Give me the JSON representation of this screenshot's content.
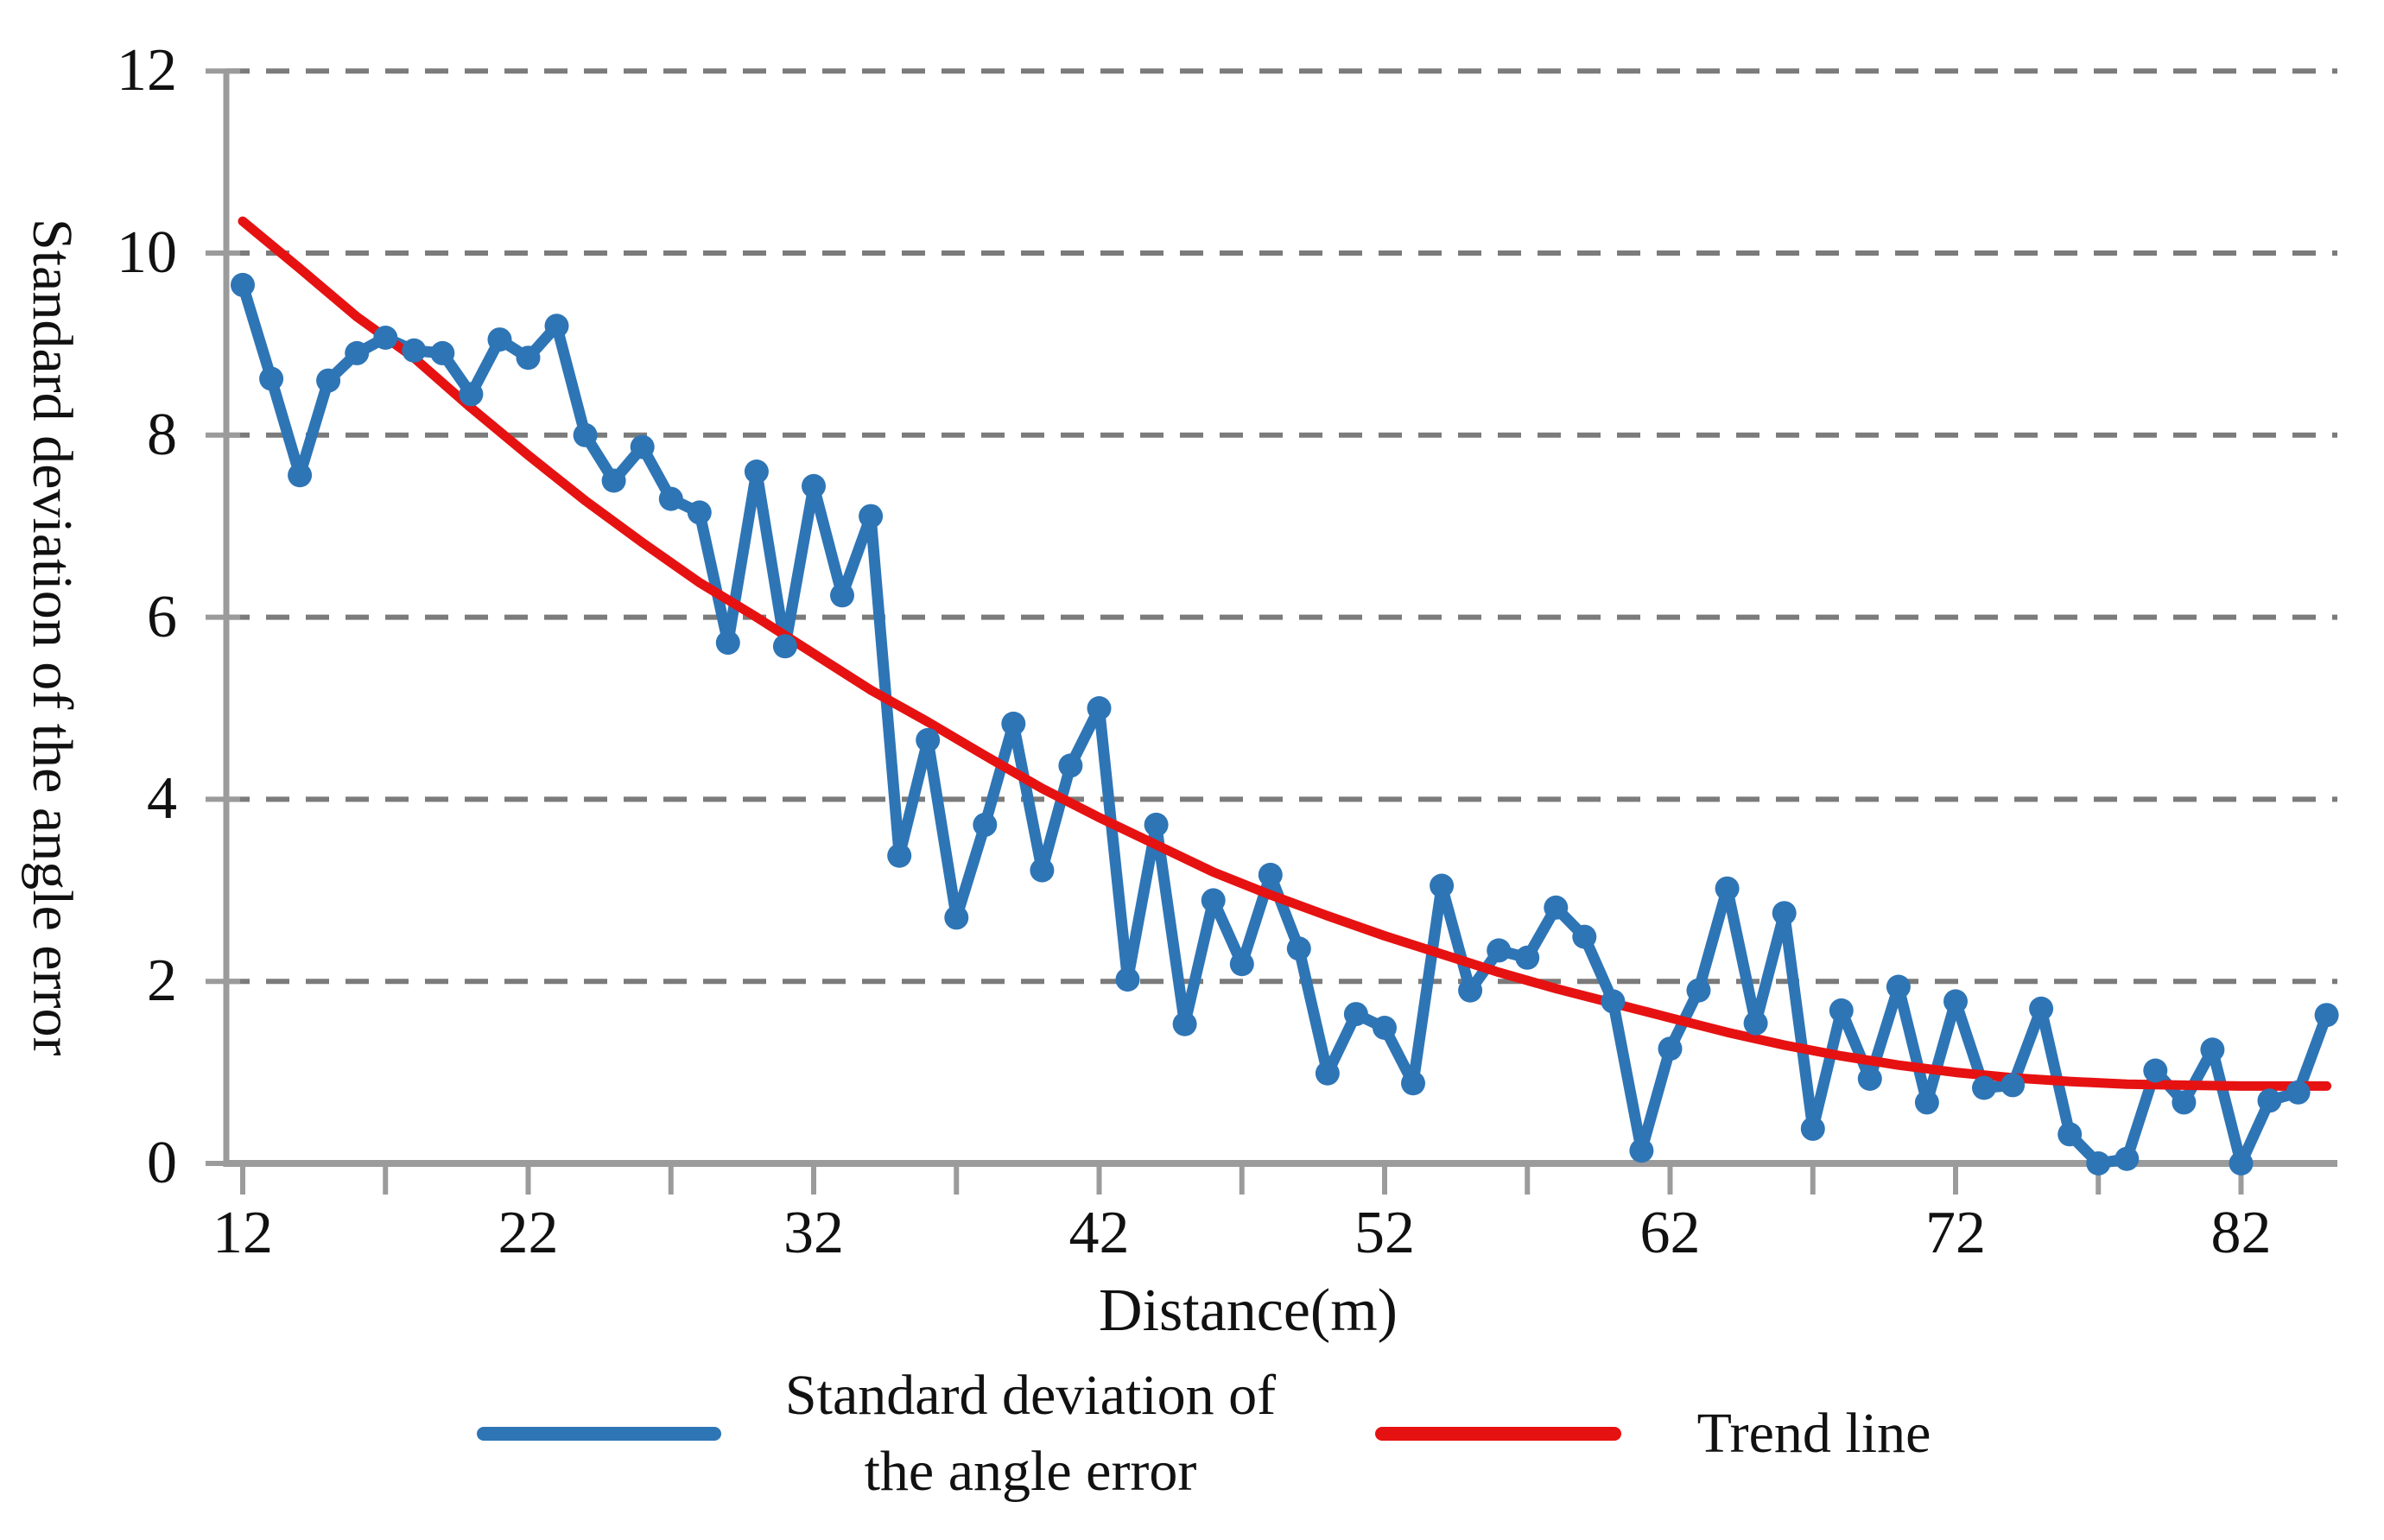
{
  "colors": {
    "series_blue": "#2E75B6",
    "trend_red": "#E61212",
    "axis_gray": "#9B9B9B",
    "grid_gray": "#7B7B7B",
    "text": "#111111",
    "background": "#FFFFFF"
  },
  "legend": {
    "series1_label_line1": "Standard deviation of",
    "series1_label_line2": "the angle error",
    "series2_label": "Trend line"
  },
  "chart_data": {
    "type": "line",
    "title": "",
    "xlabel": "Distance(m)",
    "ylabel": "Standard deviation of the angle error",
    "xlim": [
      12,
      85.3
    ],
    "ylim": [
      0,
      12
    ],
    "x_tick_labels": [
      12,
      22,
      32,
      42,
      52,
      62,
      72,
      82
    ],
    "x_minor_tick_step": 5,
    "y_tick_labels": [
      0,
      2,
      4,
      6,
      8,
      10,
      12
    ],
    "grid": "horizontal dashed gridlines every 2 units",
    "legend_position": "bottom-center",
    "series": [
      {
        "name": "Standard deviation of the angle error",
        "style": "line+markers",
        "color": "#2E75B6",
        "x": [
          12,
          13,
          14,
          15,
          16,
          17,
          18,
          19,
          20,
          21,
          22,
          23,
          24,
          25,
          26,
          27,
          28,
          29,
          30,
          31,
          32,
          33,
          34,
          35,
          36,
          37,
          38,
          39,
          40,
          41,
          42,
          43,
          44,
          45,
          46,
          47,
          48,
          49,
          50,
          51,
          52,
          53,
          54,
          55,
          56,
          57,
          58,
          59,
          60,
          61,
          62,
          63,
          64,
          65,
          66,
          67,
          68,
          69,
          70,
          71,
          72,
          73,
          74,
          75,
          76,
          77,
          78,
          79,
          80,
          81,
          82,
          83,
          84,
          85
        ],
        "values": [
          9.65,
          8.62,
          7.56,
          8.6,
          8.9,
          9.07,
          8.93,
          8.9,
          8.45,
          9.05,
          8.85,
          9.2,
          8.0,
          7.5,
          7.87,
          7.3,
          7.15,
          5.72,
          7.6,
          5.68,
          7.44,
          6.24,
          7.11,
          3.38,
          4.65,
          2.7,
          3.72,
          4.83,
          3.22,
          4.37,
          5.0,
          2.02,
          3.72,
          1.53,
          2.89,
          2.19,
          3.17,
          2.36,
          0.99,
          1.64,
          1.49,
          0.88,
          3.05,
          1.9,
          2.34,
          2.26,
          2.81,
          2.49,
          1.78,
          0.14,
          1.26,
          1.9,
          3.02,
          1.54,
          2.75,
          0.38,
          1.68,
          0.93,
          1.94,
          0.67,
          1.78,
          0.83,
          0.86,
          1.7,
          0.32,
          0.0,
          0.05,
          1.02,
          0.67,
          1.25,
          0.0,
          0.69,
          0.78,
          1.63
        ]
      },
      {
        "name": "Trend line",
        "style": "smooth-line",
        "color": "#E61212",
        "x": [
          12,
          14,
          16,
          18,
          20,
          22,
          24,
          26,
          28,
          30,
          32,
          34,
          36,
          38,
          40,
          42,
          44,
          46,
          48,
          50,
          52,
          54,
          56,
          58,
          60,
          62,
          64,
          66,
          68,
          70,
          72,
          74,
          76,
          78,
          80,
          82,
          84,
          85
        ],
        "values": [
          10.35,
          9.83,
          9.3,
          8.85,
          8.3,
          7.78,
          7.28,
          6.82,
          6.38,
          6.0,
          5.6,
          5.2,
          4.85,
          4.48,
          4.12,
          3.8,
          3.5,
          3.2,
          2.95,
          2.72,
          2.5,
          2.3,
          2.1,
          1.92,
          1.76,
          1.6,
          1.44,
          1.3,
          1.18,
          1.08,
          1.0,
          0.94,
          0.9,
          0.87,
          0.86,
          0.85,
          0.85,
          0.85
        ]
      }
    ]
  }
}
